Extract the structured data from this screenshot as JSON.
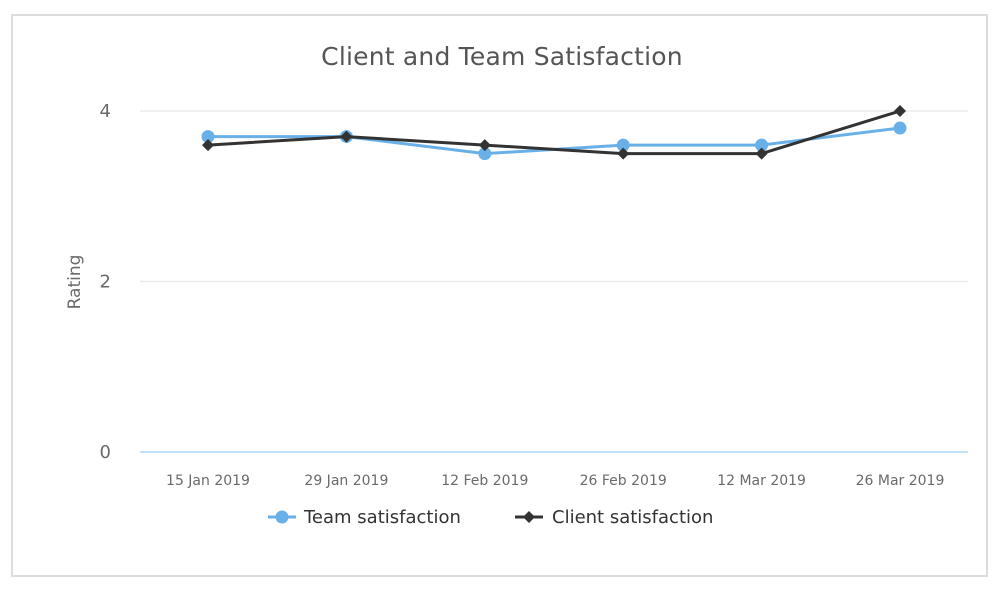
{
  "chart_data": {
    "type": "line",
    "title": "Client and Team Satisfaction",
    "xlabel": "",
    "ylabel": "Rating",
    "categories": [
      "15 Jan 2019",
      "29 Jan 2019",
      "12 Feb 2019",
      "26 Feb 2019",
      "12 Mar 2019",
      "26 Mar 2019"
    ],
    "ylim": [
      0,
      4
    ],
    "yticks": [
      0,
      2,
      4
    ],
    "grid": true,
    "legend_position": "bottom",
    "series": [
      {
        "name": "Team satisfaction",
        "values": [
          3.7,
          3.7,
          3.5,
          3.6,
          3.6,
          3.8
        ],
        "color": "#6ab0e8",
        "marker": "circle"
      },
      {
        "name": "Client satisfaction",
        "values": [
          3.6,
          3.7,
          3.6,
          3.5,
          3.5,
          4.0
        ],
        "color": "#333333",
        "marker": "diamond"
      }
    ],
    "colors": {
      "grid": "#ececec",
      "baseline": "#bfe0f5"
    }
  }
}
